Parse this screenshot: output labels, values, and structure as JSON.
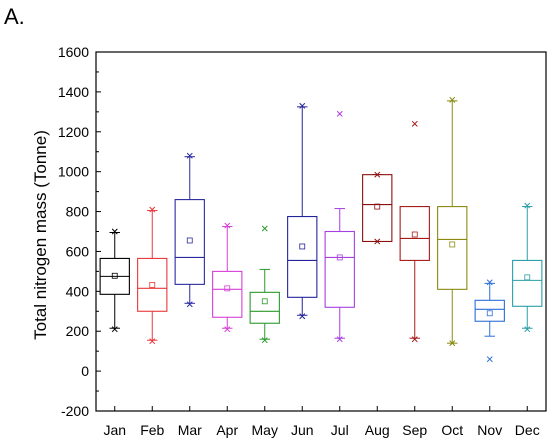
{
  "panel_label": "A.",
  "chart_data": {
    "type": "box",
    "title": "",
    "xlabel": "",
    "ylabel": "Total nitrogen mass (Tonne)",
    "ylim": [
      -200,
      1600
    ],
    "yticks": [
      -200,
      0,
      200,
      400,
      600,
      800,
      1000,
      1200,
      1400,
      1600
    ],
    "grid": false,
    "categories": [
      "Jan",
      "Feb",
      "Mar",
      "Apr",
      "May",
      "Jun",
      "Jul",
      "Aug",
      "Sep",
      "Oct",
      "Nov",
      "Dec"
    ],
    "colors": [
      "#000000",
      "#e8383a",
      "#2a2aa0",
      "#d63fd6",
      "#2a9a2a",
      "#24249a",
      "#a63fe0",
      "#8a1010",
      "#a81a1a",
      "#8a8a10",
      "#2c6fd6",
      "#2a9ea6"
    ],
    "boxes": [
      {
        "min": 215,
        "q1": 385,
        "median": 475,
        "q3": 565,
        "max": 695,
        "mean": 478,
        "outliers_high": [
          700
        ],
        "outliers_low": [
          210
        ]
      },
      {
        "min": 155,
        "q1": 300,
        "median": 415,
        "q3": 565,
        "max": 805,
        "mean": 432,
        "outliers_high": [
          810
        ],
        "outliers_low": [
          150
        ]
      },
      {
        "min": 340,
        "q1": 435,
        "median": 570,
        "q3": 860,
        "max": 1075,
        "mean": 655,
        "outliers_high": [
          1080
        ],
        "outliers_low": [
          335
        ]
      },
      {
        "min": 215,
        "q1": 270,
        "median": 410,
        "q3": 500,
        "max": 725,
        "mean": 415,
        "outliers_high": [
          730
        ],
        "outliers_low": [
          210
        ]
      },
      {
        "min": 160,
        "q1": 240,
        "median": 300,
        "q3": 395,
        "max": 510,
        "mean": 350,
        "outliers_high": [
          715
        ],
        "outliers_low": [
          155
        ]
      },
      {
        "min": 280,
        "q1": 370,
        "median": 555,
        "q3": 775,
        "max": 1325,
        "mean": 625,
        "outliers_high": [
          1330
        ],
        "outliers_low": [
          275
        ]
      },
      {
        "min": 165,
        "q1": 320,
        "median": 570,
        "q3": 700,
        "max": 815,
        "mean": 570,
        "outliers_high": [
          1290
        ],
        "outliers_low": [
          160
        ]
      },
      {
        "min": 650,
        "q1": 650,
        "median": 835,
        "q3": 985,
        "max": 985,
        "mean": 825,
        "outliers_high": [
          985
        ],
        "outliers_low": [
          650
        ]
      },
      {
        "min": 165,
        "q1": 555,
        "median": 665,
        "q3": 825,
        "max": 825,
        "mean": 685,
        "outliers_high": [
          1240
        ],
        "outliers_low": [
          160
        ]
      },
      {
        "min": 140,
        "q1": 410,
        "median": 660,
        "q3": 825,
        "max": 1355,
        "mean": 635,
        "outliers_high": [
          1360
        ],
        "outliers_low": [
          140
        ]
      },
      {
        "min": 175,
        "q1": 250,
        "median": 310,
        "q3": 355,
        "max": 440,
        "mean": 290,
        "outliers_high": [
          445
        ],
        "outliers_low": [
          60
        ]
      },
      {
        "min": 215,
        "q1": 325,
        "median": 455,
        "q3": 555,
        "max": 825,
        "mean": 470,
        "outliers_high": [
          830
        ],
        "outliers_low": [
          210
        ]
      }
    ]
  }
}
